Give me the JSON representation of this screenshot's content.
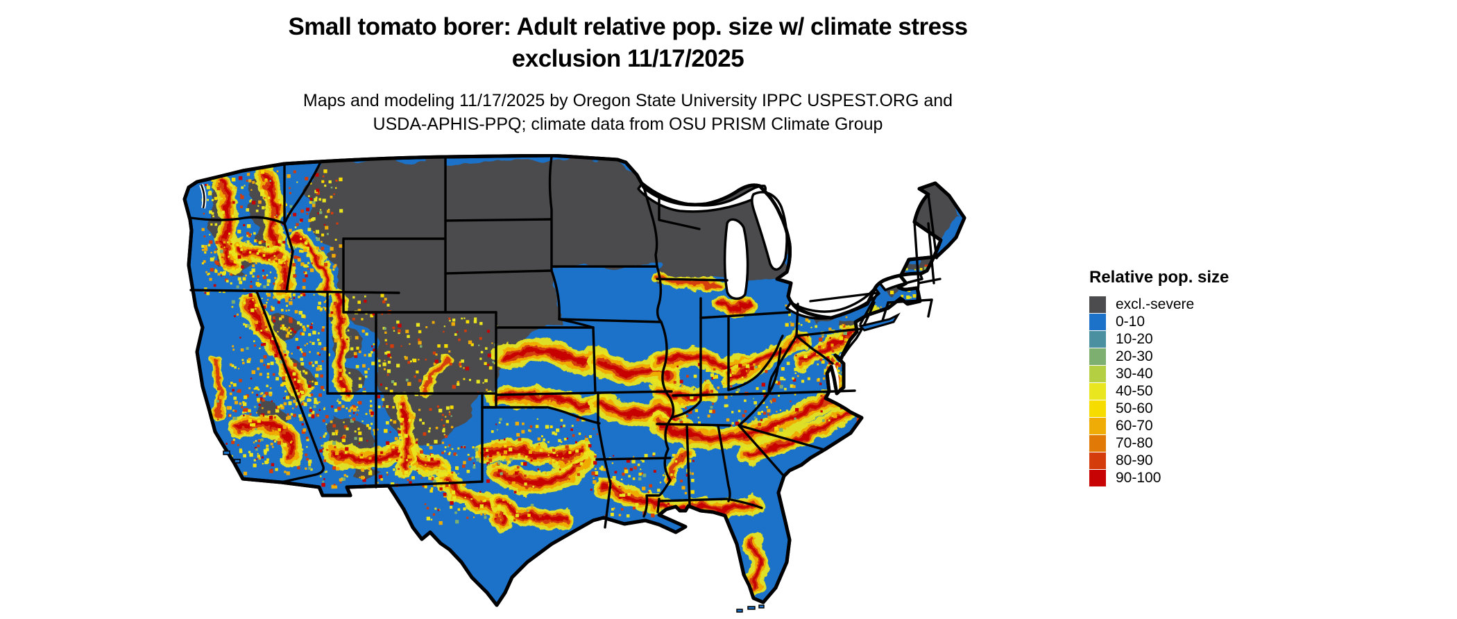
{
  "title": {
    "line1": "Small tomato borer: Adult relative pop. size w/ climate stress",
    "line2": "exclusion 11/17/2025"
  },
  "subtitle": {
    "line1": "Maps and modeling 11/17/2025 by Oregon State University IPPC USPEST.ORG and",
    "line2": "USDA-APHIS-PPQ; climate data from OSU PRISM Climate Group"
  },
  "legend": {
    "title": "Relative pop. size",
    "entries": [
      {
        "label": "excl.-severe",
        "color": "#4c4c4e"
      },
      {
        "label": "0-10",
        "color": "#1b72c8"
      },
      {
        "label": "10-20",
        "color": "#4b90a1"
      },
      {
        "label": "20-30",
        "color": "#7db070"
      },
      {
        "label": "30-40",
        "color": "#b4cf42"
      },
      {
        "label": "40-50",
        "color": "#e9e51f"
      },
      {
        "label": "50-60",
        "color": "#f7dc00"
      },
      {
        "label": "60-70",
        "color": "#efab06"
      },
      {
        "label": "70-80",
        "color": "#e17907"
      },
      {
        "label": "80-90",
        "color": "#d43c0b"
      },
      {
        "label": "90-100",
        "color": "#c70304"
      }
    ]
  },
  "map": {
    "kind": "raster choropleth of contiguous United States with state boundaries",
    "water_color": "#ffffff",
    "boundary_color": "#000000",
    "base_class": "0-10",
    "visual_summary": [
      "Northern tier (Montana, Wyoming, Dakotas, Minnesota, Wisconsin, upper Michigan, northern New England, upstate New York) shown as excl.-severe dark gray",
      "Most of south, east and west coast shown blue (0-10)",
      "Mottled red/orange/yellow high-population ribbons across Kansas-Missouri-Illinois-Ohio belt, Oklahoma-Arkansas, Texas, the Southeast piedmont, Gulf coast, central Florida, Sierra Nevada, Pacific Northwest mountains and the Southwest",
      "Great Lakes and ocean shown white"
    ]
  }
}
